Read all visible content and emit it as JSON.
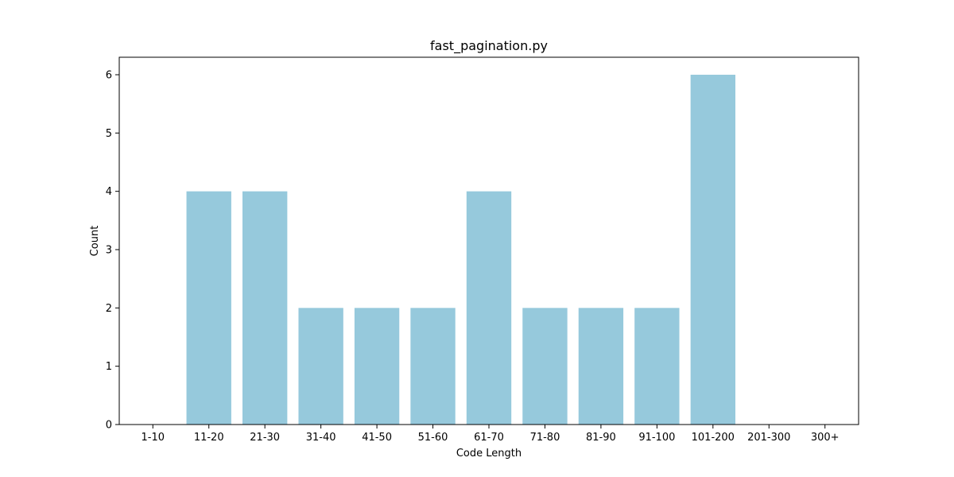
{
  "chart_data": {
    "type": "bar",
    "title": "fast_pagination.py",
    "xlabel": "Code Length",
    "ylabel": "Count",
    "categories": [
      "1-10",
      "11-20",
      "21-30",
      "31-40",
      "41-50",
      "51-60",
      "61-70",
      "71-80",
      "81-90",
      "91-100",
      "101-200",
      "201-300",
      "300+"
    ],
    "values": [
      0,
      4,
      4,
      2,
      2,
      2,
      4,
      2,
      2,
      2,
      6,
      0,
      0
    ],
    "ylim": [
      0,
      6.3
    ],
    "yticks": [
      0,
      1,
      2,
      3,
      4,
      5,
      6
    ],
    "bar_color": "#96c9dc",
    "grid": false,
    "legend": false
  }
}
